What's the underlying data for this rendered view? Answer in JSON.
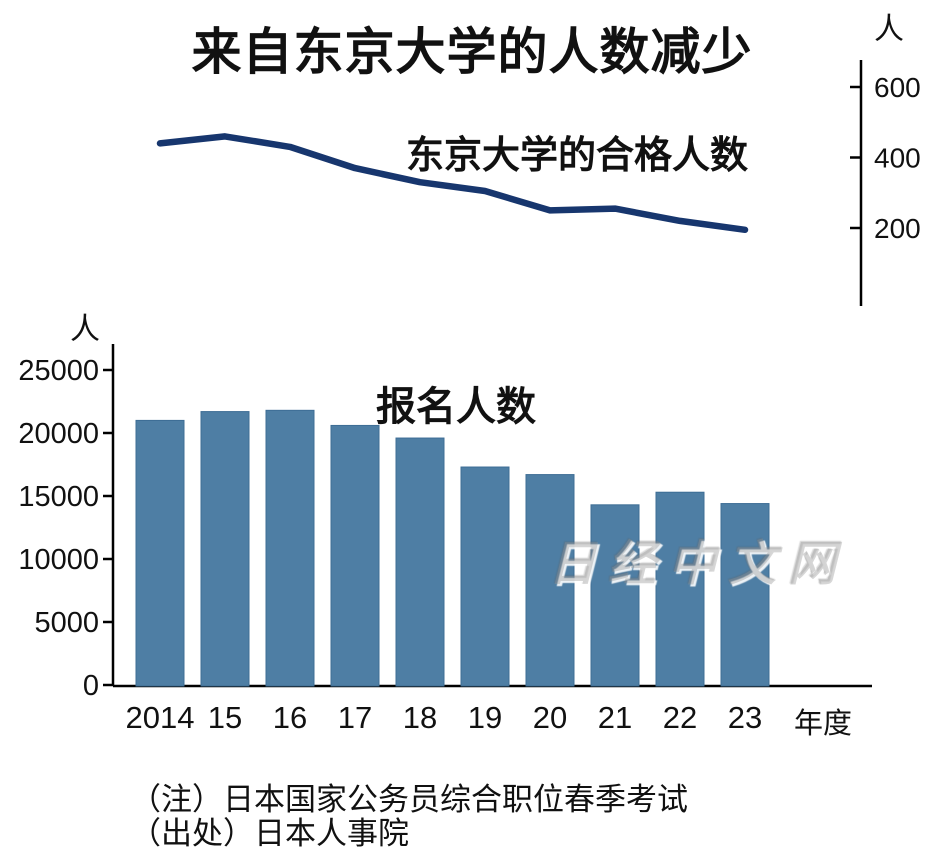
{
  "title": "来自东京大学的人数减少",
  "watermark": "日经中文网",
  "notes": [
    "（注）日本国家公务员综合职位春季考试",
    "（出处）日本人事院"
  ],
  "colors": {
    "line": "#17366e",
    "bar": "#4e7ea4",
    "bar_edge": "#3d6d95",
    "axis": "#000000"
  },
  "chart_data": [
    {
      "type": "line",
      "title": "东京大学的合格人数",
      "unit_label": "人",
      "categories": [
        "2014",
        "15",
        "16",
        "17",
        "18",
        "19",
        "20",
        "21",
        "22",
        "23"
      ],
      "values": [
        440,
        460,
        430,
        370,
        330,
        305,
        250,
        255,
        220,
        195
      ],
      "yticks": [
        200,
        400,
        600
      ],
      "ylim": [
        150,
        650
      ],
      "legend_position": "none",
      "axis_side": "right",
      "grid": false
    },
    {
      "type": "bar",
      "title": "报名人数",
      "unit_label": "人",
      "xlabel": "年度",
      "categories": [
        "2014",
        "15",
        "16",
        "17",
        "18",
        "19",
        "20",
        "21",
        "22",
        "23"
      ],
      "values": [
        21000,
        21700,
        21800,
        20600,
        19600,
        17300,
        16700,
        14300,
        15300,
        14400
      ],
      "yticks": [
        0,
        5000,
        10000,
        15000,
        20000,
        25000
      ],
      "ylim": [
        0,
        25000
      ],
      "legend_position": "none",
      "axis_side": "left",
      "grid": false
    }
  ]
}
